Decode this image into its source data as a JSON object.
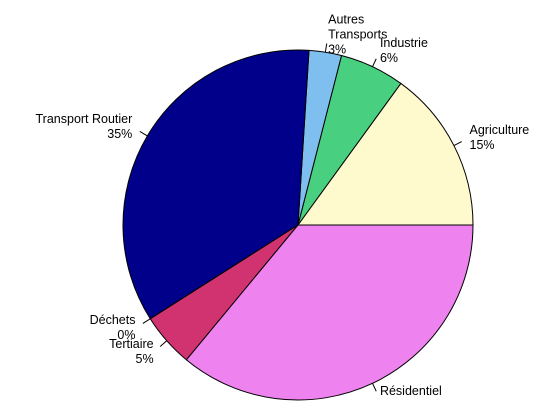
{
  "chart_data": {
    "type": "pie",
    "categories": [
      "Agriculture",
      "Industrie",
      "Autres Transports",
      "Transport Routier",
      "Déchets",
      "Tertiaire",
      "Résidentiel"
    ],
    "values": [
      15,
      6,
      3,
      35,
      0,
      5,
      36
    ],
    "value_labels": [
      "15%",
      "6%",
      "3%",
      "35%",
      "0%",
      "5%",
      "36%"
    ],
    "colors": [
      "#fffacd",
      "#48cf80",
      "#7fbfef",
      "#00008b",
      "#c0c0c0",
      "#d0336f",
      "#ee82ee"
    ]
  }
}
